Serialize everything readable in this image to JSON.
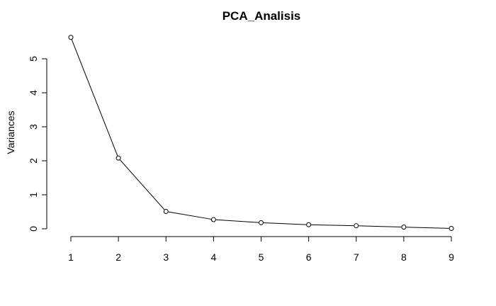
{
  "chart_data": {
    "type": "line",
    "title": "PCA_Analisis",
    "xlabel": "",
    "ylabel": "Variances",
    "x": [
      1,
      2,
      3,
      4,
      5,
      6,
      7,
      8,
      9
    ],
    "values": [
      5.63,
      2.08,
      0.51,
      0.27,
      0.18,
      0.12,
      0.09,
      0.05,
      0.01
    ],
    "xlim": [
      1,
      9
    ],
    "ylim": [
      0,
      5
    ],
    "xticks": [
      "1",
      "2",
      "3",
      "4",
      "5",
      "6",
      "7",
      "8",
      "9"
    ],
    "yticks": [
      "0",
      "1",
      "2",
      "3",
      "4",
      "5"
    ],
    "markers": "open-circle",
    "grid": false
  }
}
